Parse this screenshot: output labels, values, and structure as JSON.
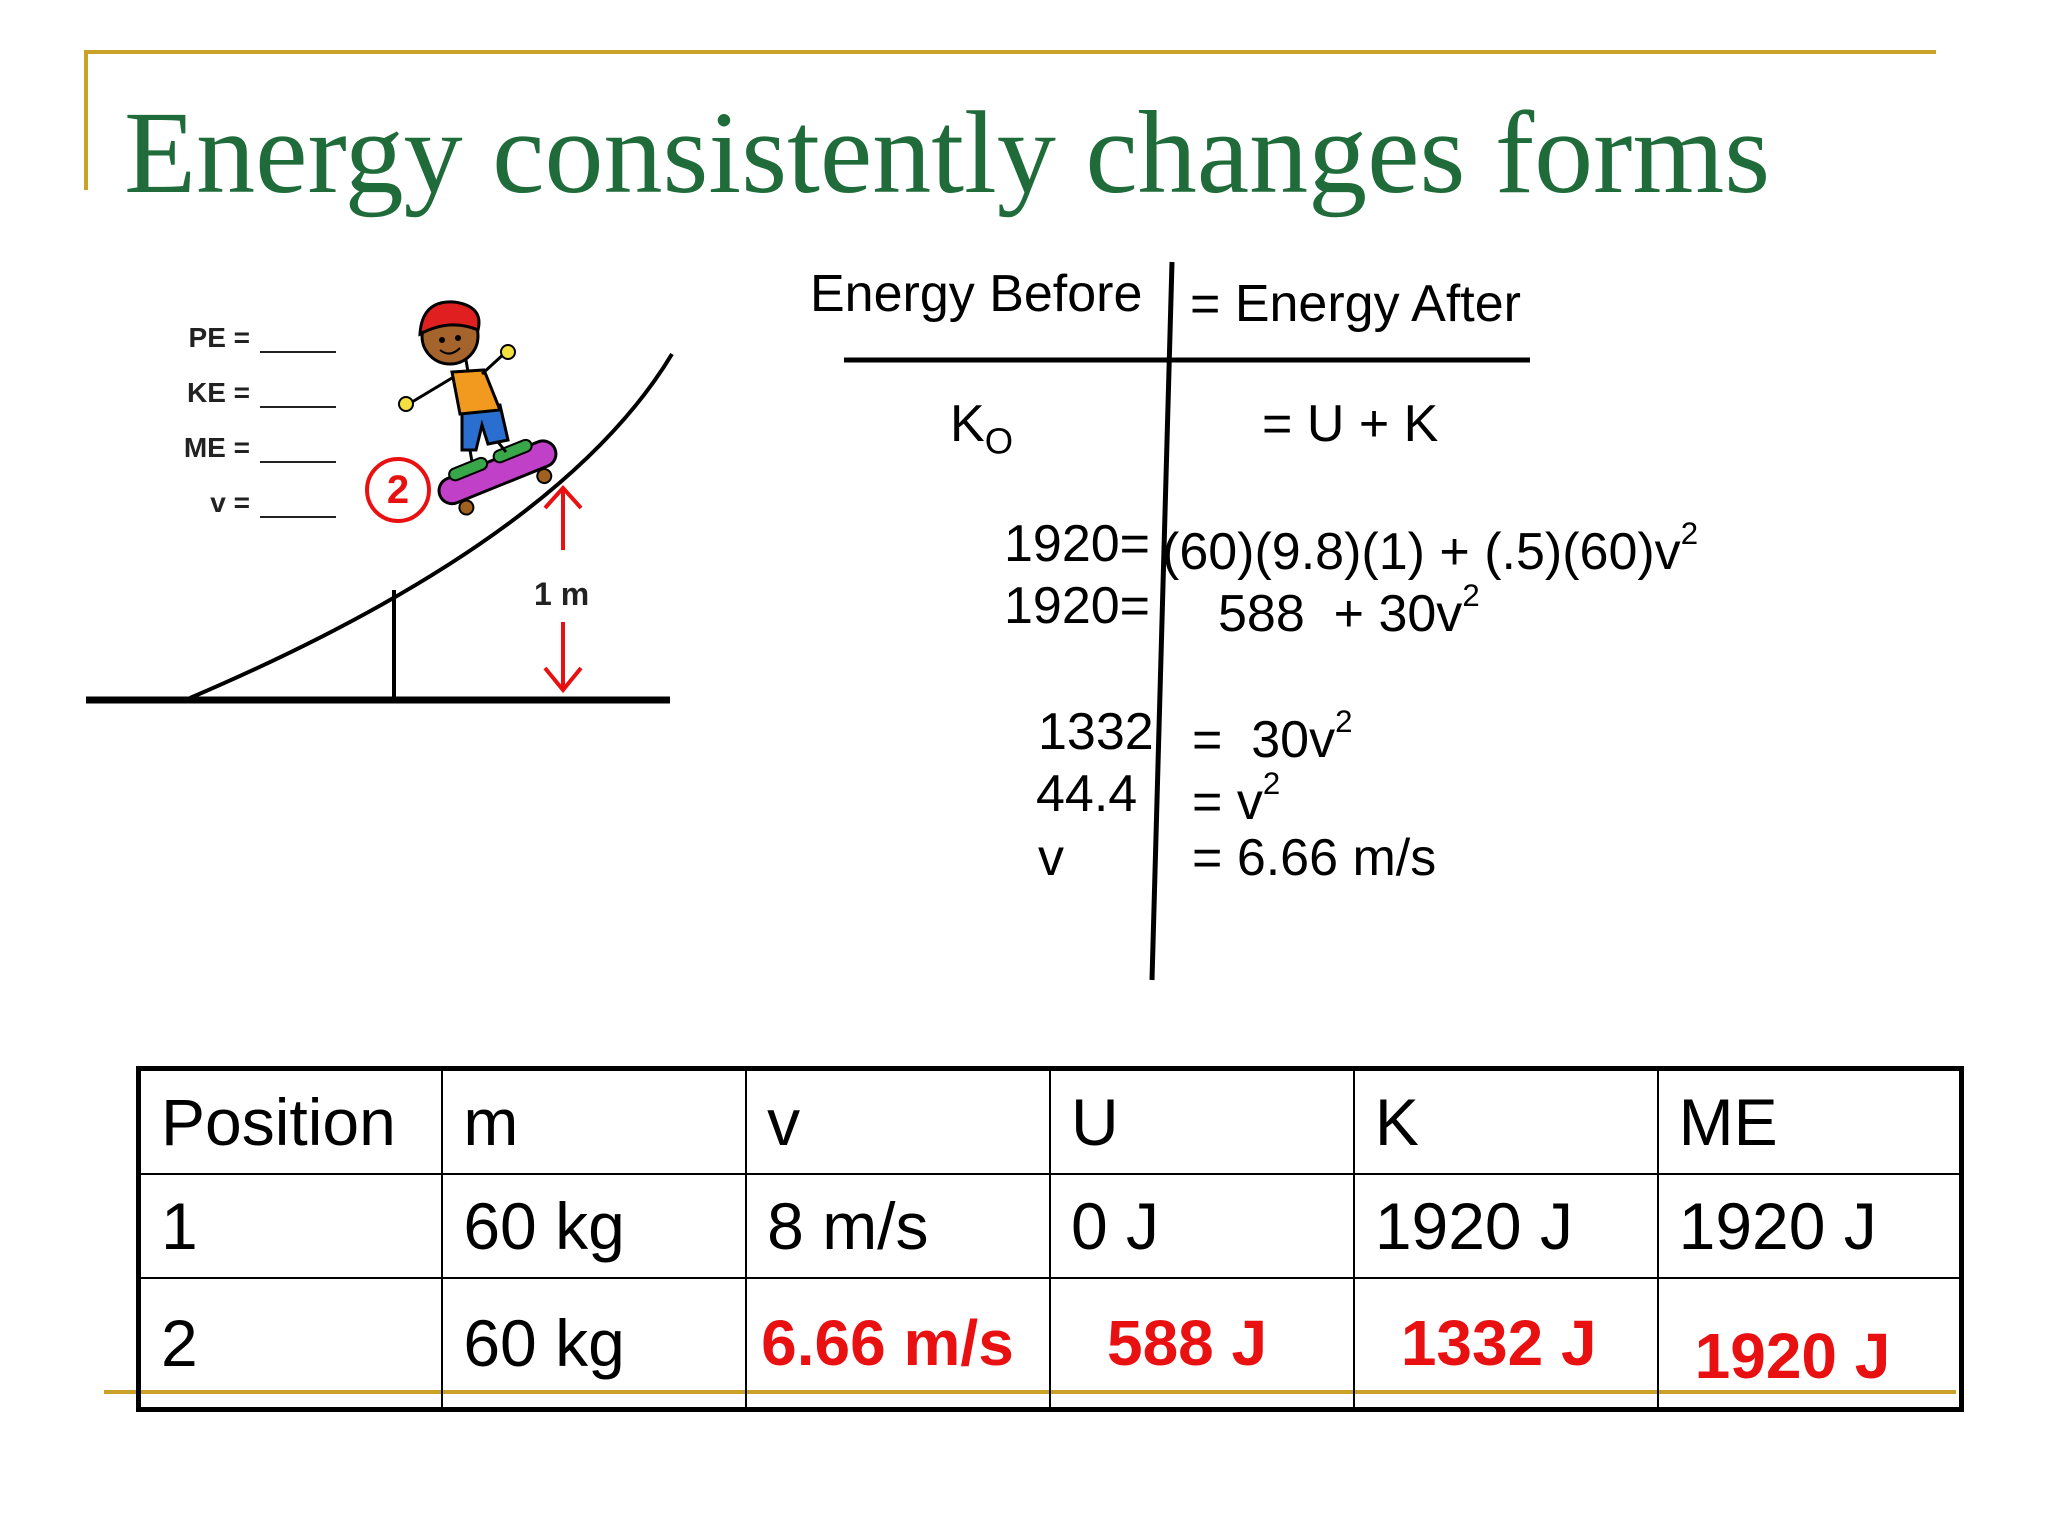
{
  "slide": {
    "title": "Energy consistently changes forms",
    "accent_color": "#c9a227",
    "title_color": "#1f6b3a",
    "answer_color": "#e81010"
  },
  "diagram": {
    "blanks": [
      "PE =",
      "KE =",
      "ME =",
      "v ="
    ],
    "position_badge": "2",
    "height_label": "1 m",
    "icons": [
      "skateboarder-illustration",
      "height-arrow"
    ]
  },
  "work": {
    "header_before": "Energy Before",
    "header_after": "= Energy After",
    "row1_left_base": "K",
    "row1_left_sub": "O",
    "row1_right": "= U + K",
    "line1_left": "1920=",
    "line1_right_pre": "(60)(9.8)(1) + (.5)(60)v",
    "line1_sup": "2",
    "line2_left": "1920=",
    "line2_right_pre": "588  + 30v",
    "line2_sup": "2",
    "line3_left": "1332",
    "line3_right_pre": "=  30v",
    "line3_sup": "2",
    "line4_left": "44.4",
    "line4_right_pre": "= v",
    "line4_sup": "2",
    "line5_left": "v",
    "line5_right": "= 6.66 m/s"
  },
  "table": {
    "headers": [
      "Position",
      "m",
      "v",
      "U",
      "K",
      "ME"
    ],
    "rows": [
      [
        "1",
        "60 kg",
        "8 m/s",
        "0 J",
        "1920 J",
        "1920 J"
      ],
      [
        "2",
        "60 kg",
        "6.66 m/s",
        "588 J",
        "1332 J",
        "1920 J"
      ]
    ]
  }
}
